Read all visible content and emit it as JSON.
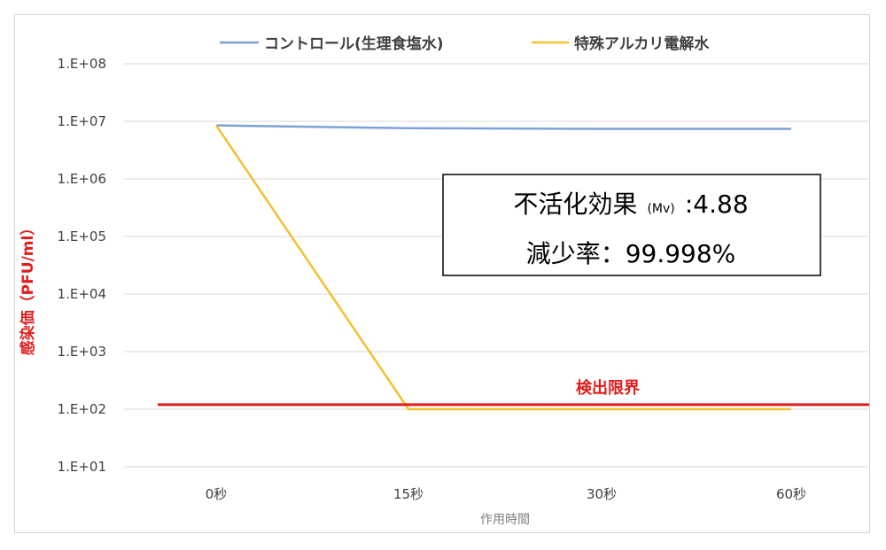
{
  "chart_data": {
    "type": "line",
    "title": "",
    "xlabel": "作用時間",
    "ylabel": "感染価（PFU/ml）",
    "categories": [
      "0秒",
      "15秒",
      "30秒",
      "60秒"
    ],
    "y_scale": "log",
    "ylim": [
      10,
      100000000
    ],
    "y_ticks": [
      10,
      100,
      1000,
      10000,
      100000,
      1000000,
      10000000,
      100000000
    ],
    "y_tick_labels": [
      "1.E+01",
      "1.E+02",
      "1.E+03",
      "1.E+04",
      "1.E+05",
      "1.E+06",
      "1.E+07",
      "1.E+08"
    ],
    "legend_position": "top",
    "grid": {
      "horizontal": true,
      "vertical": false
    },
    "series": [
      {
        "name": "コントロール(生理食塩水)",
        "color": "#7da2d6",
        "values": [
          8500000,
          7600000,
          7400000,
          7400000
        ]
      },
      {
        "name": "特殊アルカリ電解水",
        "color": "#f2c12e",
        "values": [
          8500000,
          100,
          100,
          100
        ]
      }
    ],
    "detection_limit": {
      "label": "検出限界",
      "value": 120,
      "color": "#e31b1b"
    },
    "info_box": {
      "line1_main": "不活化効果",
      "line1_small": "(Mv)",
      "line1_value": ":4.88",
      "line2": "減少率：99.998%"
    }
  }
}
